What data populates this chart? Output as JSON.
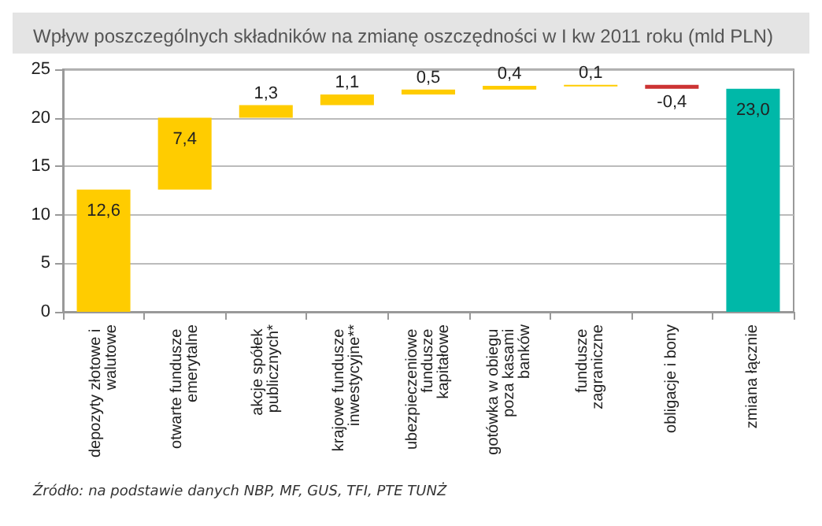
{
  "chart_data": {
    "type": "bar",
    "title": "Wpływ poszczególnych składników na zmianę oszczędności w I kw 2011 roku (mld PLN)",
    "categories": [
      "depozyty złotowe i walutowe",
      "otwarte fundusze emerytalne",
      "akcje spółek publicznych*",
      "krajowe fundusze inwestycyjne**",
      "ubezpieczeniowe fundusze kapitałowe",
      "gotówka w obiegu poza kasami banków",
      "fundusze zagraniczne",
      "obligacje i bony",
      "zmiana łącznie"
    ],
    "values": [
      12.6,
      7.4,
      1.3,
      1.1,
      0.5,
      0.4,
      0.1,
      -0.4,
      23.0
    ],
    "base": [
      0,
      12.6,
      20.0,
      21.3,
      22.4,
      22.9,
      23.3,
      23.4,
      0
    ],
    "colors": [
      "#ffcc00",
      "#ffcc00",
      "#ffcc00",
      "#ffcc00",
      "#ffcc00",
      "#ffcc00",
      "#ffcc00",
      "#cc3333",
      "#00b8a8"
    ],
    "value_labels": [
      "12,6",
      "7,4",
      "1,3",
      "1,1",
      "0,5",
      "0,4",
      "0,1",
      "-0,4",
      "23,0"
    ],
    "ylim": [
      0,
      25
    ],
    "yticks": [
      0,
      5,
      10,
      15,
      20,
      25
    ],
    "grid": "y",
    "annotations": [
      "Źródło: na podstawie danych NBP, MF, GUS, TFI, PTE TUNŻ"
    ]
  }
}
